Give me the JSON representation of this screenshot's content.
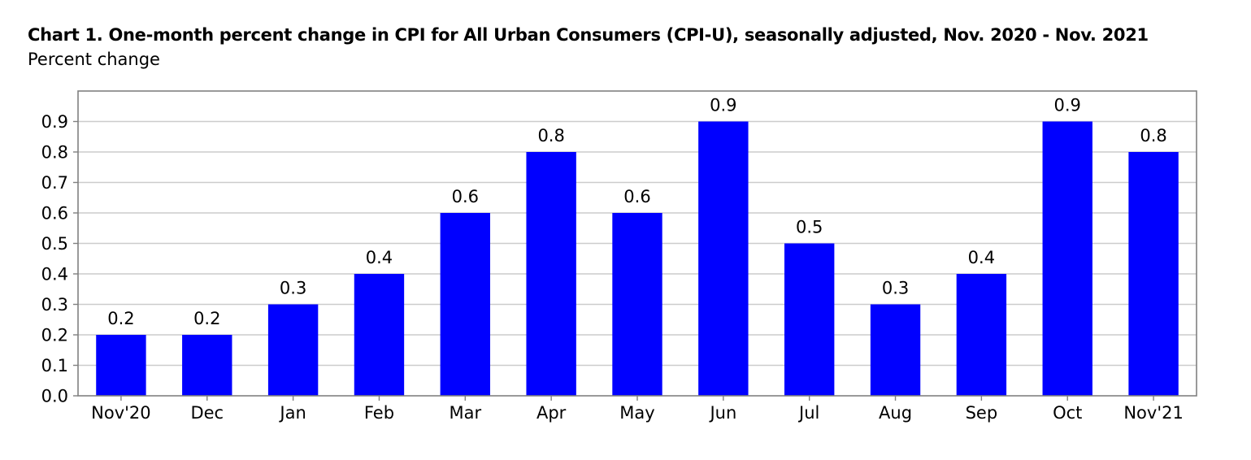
{
  "chart_data": {
    "type": "bar",
    "title": "Chart 1. One-month percent change in CPI for All Urban Consumers (CPI-U), seasonally adjusted, Nov. 2020 - Nov. 2021",
    "ylabel": "Percent change",
    "xlabel": "",
    "categories": [
      "Nov'20",
      "Dec",
      "Jan",
      "Feb",
      "Mar",
      "Apr",
      "May",
      "Jun",
      "Jul",
      "Aug",
      "Sep",
      "Oct",
      "Nov'21"
    ],
    "values": [
      0.2,
      0.2,
      0.3,
      0.4,
      0.6,
      0.8,
      0.6,
      0.9,
      0.5,
      0.3,
      0.4,
      0.9,
      0.8
    ],
    "value_labels": [
      "0.2",
      "0.2",
      "0.3",
      "0.4",
      "0.6",
      "0.8",
      "0.6",
      "0.9",
      "0.5",
      "0.3",
      "0.4",
      "0.9",
      "0.8"
    ],
    "ylim": [
      0,
      1.0
    ],
    "yticks": [
      0.0,
      0.1,
      0.2,
      0.3,
      0.4,
      0.5,
      0.6,
      0.7,
      0.8,
      0.9
    ],
    "ytick_labels": [
      "0.0",
      "0.1",
      "0.2",
      "0.3",
      "0.4",
      "0.5",
      "0.6",
      "0.7",
      "0.8",
      "0.9"
    ],
    "grid": true,
    "legend": "none",
    "bar_color": "#0000ff",
    "grid_color": "#cccccc",
    "frame_color": "#808080"
  }
}
